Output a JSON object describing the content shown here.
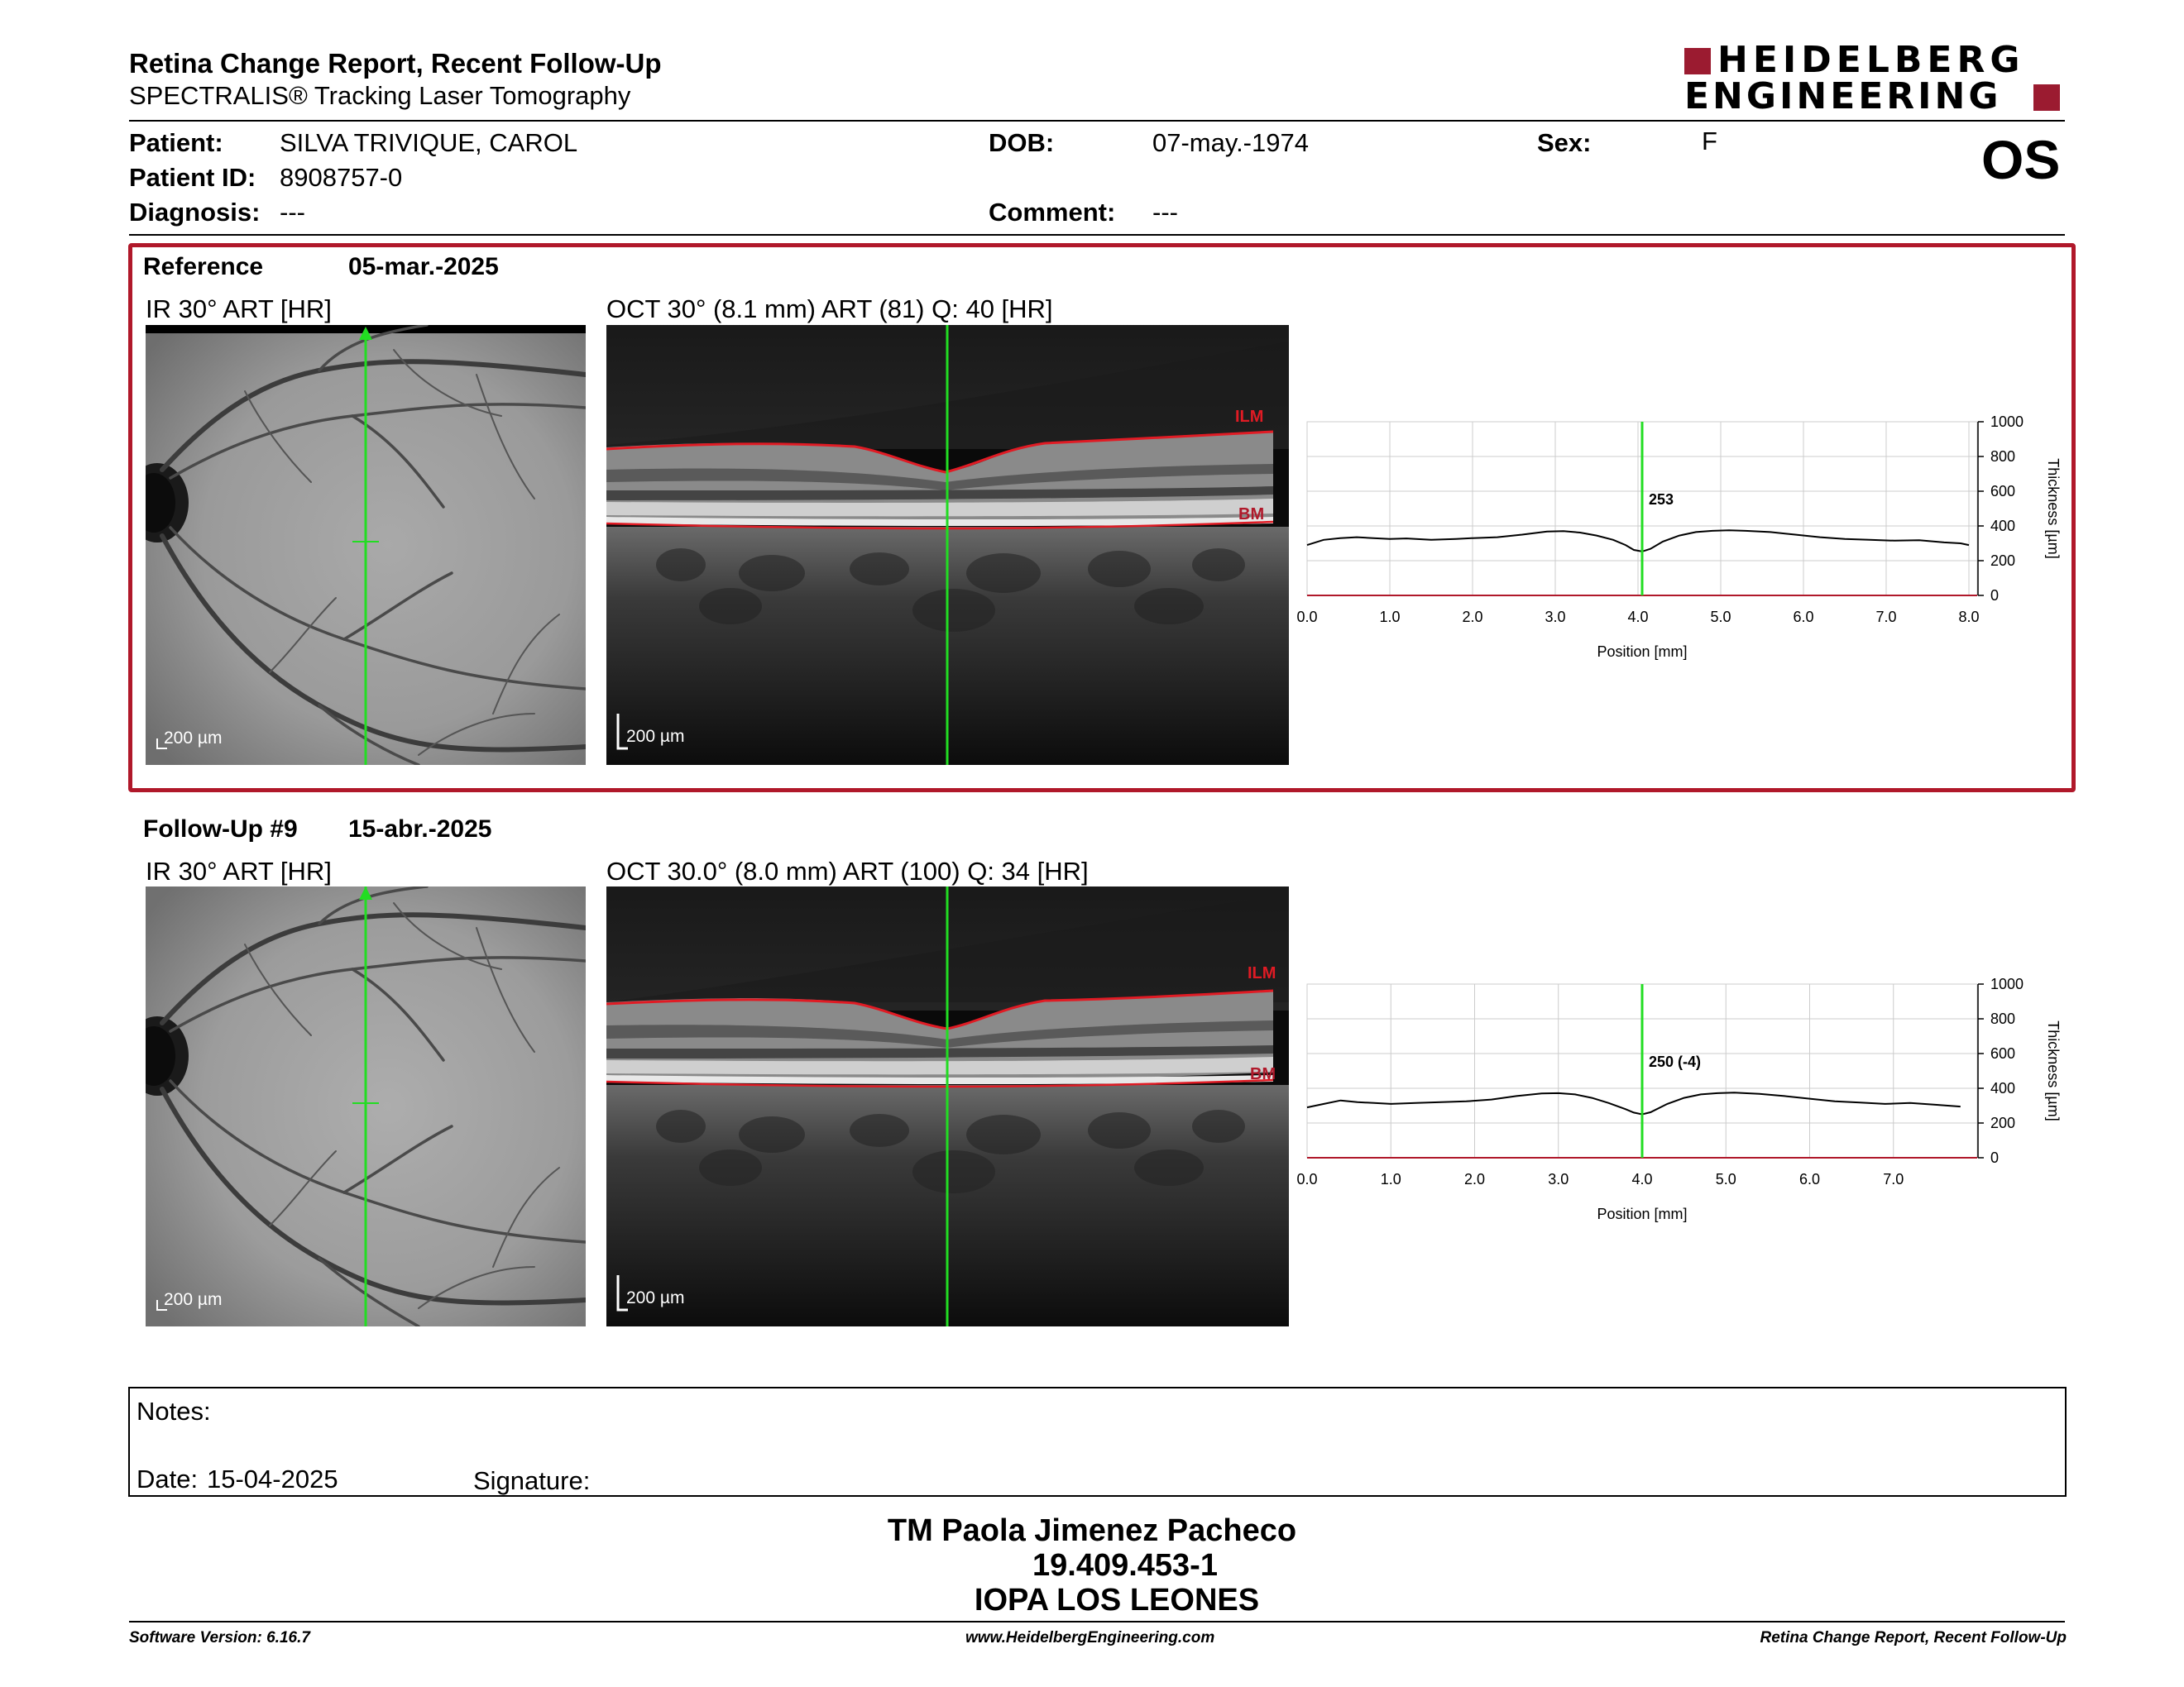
{
  "report": {
    "title": "Retina Change Report, Recent Follow-Up",
    "subtitle": "SPECTRALIS® Tracking Laser Tomography",
    "logo_line1": "HEIDELBERG",
    "logo_line2": "ENGINEERING",
    "eye": "OS"
  },
  "patient": {
    "name_label": "Patient:",
    "name": "SILVA TRIVIQUE, CAROL",
    "id_label": "Patient ID:",
    "id": "8908757-0",
    "diagnosis_label": "Diagnosis:",
    "diagnosis": "---",
    "dob_label": "DOB:",
    "dob": "07-may.-1974",
    "comment_label": "Comment:",
    "comment": "---",
    "sex_label": "Sex:",
    "sex": "F"
  },
  "reference": {
    "label": "Reference",
    "date": "05-mar.-2025",
    "ir_caption": "IR 30° ART [HR]",
    "oct_caption": "OCT 30° (8.1 mm) ART (81) Q: 40 [HR]",
    "ir_scale": "200 µm",
    "oct_scale": "200 µm",
    "ilm_label": "ILM",
    "bm_label": "BM"
  },
  "followup": {
    "label": "Follow-Up #9",
    "date": "15-abr.-2025",
    "ir_caption": "IR 30° ART [HR]",
    "oct_caption": "OCT 30.0° (8.0 mm) ART (100) Q: 34 [HR]",
    "ir_scale": "200 µm",
    "oct_scale": "200 µm",
    "ilm_label": "ILM",
    "bm_label": "BM"
  },
  "chart_data": [
    {
      "type": "line",
      "xlabel": "Position [mm]",
      "ylabel": "Thickness [µm]",
      "xlim": [
        0,
        8.1
      ],
      "ylim": [
        0,
        1000
      ],
      "x_ticks": [
        "0.0",
        "1.0",
        "2.0",
        "3.0",
        "4.0",
        "5.0",
        "6.0",
        "7.0",
        "8.0"
      ],
      "y_ticks": [
        "0",
        "200",
        "400",
        "600",
        "800",
        "1000"
      ],
      "cursor_x": 4.05,
      "cursor_label": "253",
      "grid": true,
      "colors": {
        "line": "#000000",
        "cursor": "#22dd22",
        "baseline": "#b0182a"
      },
      "series": [
        {
          "x": [
            0,
            0.2,
            0.4,
            0.6,
            0.8,
            1.0,
            1.2,
            1.5,
            1.8,
            2.0,
            2.3,
            2.6,
            2.9,
            3.1,
            3.3,
            3.5,
            3.7,
            3.85,
            3.95,
            4.05,
            4.15,
            4.3,
            4.5,
            4.7,
            4.9,
            5.1,
            5.3,
            5.6,
            5.9,
            6.2,
            6.5,
            6.8,
            7.1,
            7.4,
            7.7,
            7.9,
            8.0
          ],
          "y": [
            290,
            320,
            330,
            335,
            330,
            325,
            328,
            320,
            325,
            330,
            335,
            350,
            368,
            370,
            362,
            345,
            320,
            290,
            262,
            253,
            268,
            310,
            345,
            365,
            372,
            375,
            372,
            365,
            350,
            335,
            325,
            320,
            315,
            318,
            305,
            300,
            290
          ]
        }
      ]
    },
    {
      "type": "line",
      "xlabel": "Position [mm]",
      "ylabel": "Thickness [µm]",
      "xlim": [
        0,
        8.0
      ],
      "ylim": [
        0,
        1000
      ],
      "x_ticks": [
        "0.0",
        "1.0",
        "2.0",
        "3.0",
        "4.0",
        "5.0",
        "6.0",
        "7.0"
      ],
      "y_ticks": [
        "0",
        "200",
        "400",
        "600",
        "800",
        "1000"
      ],
      "cursor_x": 4.0,
      "cursor_label": "250 (-4)",
      "grid": true,
      "colors": {
        "line": "#000000",
        "cursor": "#22dd22",
        "baseline": "#b0182a"
      },
      "series": [
        {
          "x": [
            0,
            0.2,
            0.4,
            0.6,
            0.8,
            1.0,
            1.3,
            1.6,
            1.9,
            2.2,
            2.5,
            2.8,
            3.0,
            3.2,
            3.4,
            3.6,
            3.8,
            3.9,
            4.0,
            4.1,
            4.3,
            4.5,
            4.7,
            4.9,
            5.1,
            5.4,
            5.7,
            6.0,
            6.3,
            6.6,
            6.9,
            7.2,
            7.5,
            7.8
          ],
          "y": [
            290,
            310,
            330,
            320,
            315,
            310,
            315,
            320,
            325,
            335,
            355,
            370,
            372,
            365,
            345,
            315,
            280,
            260,
            250,
            262,
            310,
            345,
            365,
            372,
            375,
            368,
            355,
            340,
            325,
            318,
            310,
            315,
            305,
            295
          ]
        }
      ]
    }
  ],
  "notes": {
    "label": "Notes:",
    "date_label": "Date:",
    "date": "15-04-2025",
    "signature_label": "Signature:"
  },
  "signer": {
    "name": "TM Paola Jimenez Pacheco",
    "rut": "19.409.453-1",
    "institution": "IOPA LOS LEONES"
  },
  "footer": {
    "left": "Software Version: 6.16.7",
    "center": "www.HeidelbergEngineering.com",
    "right": "Retina Change Report, Recent Follow-Up"
  }
}
